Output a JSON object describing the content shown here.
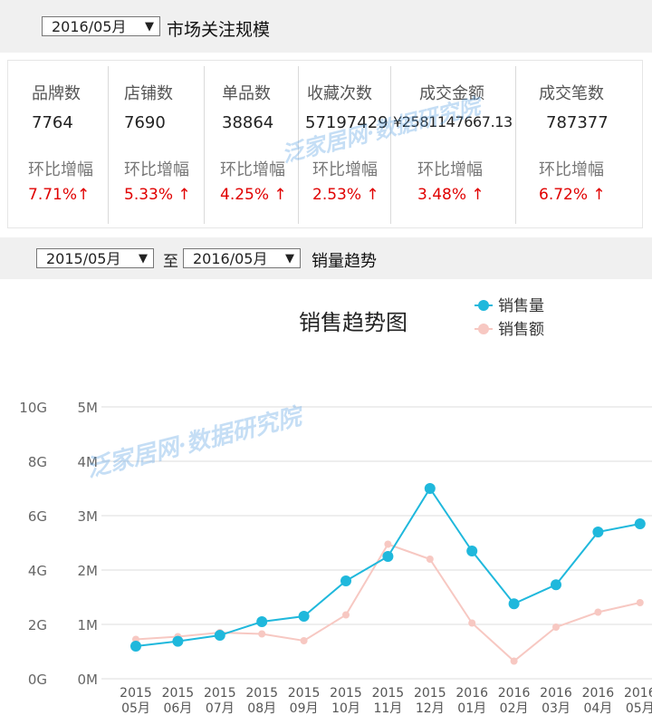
{
  "header": {
    "period": "2016/05月",
    "title": "市场关注规模"
  },
  "metrics": [
    {
      "label": "品牌数",
      "value": "7764",
      "change_label": "环比增幅",
      "change": "7.71%↑"
    },
    {
      "label": "店铺数",
      "value": "7690",
      "change_label": "环比增幅",
      "change": "5.33% ↑"
    },
    {
      "label": "单品数",
      "value": "38864",
      "change_label": "环比增幅",
      "change": "4.25% ↑"
    },
    {
      "label": "收藏次数",
      "value": "57197429",
      "change_label": "环比增幅",
      "change": "2.53% ↑"
    },
    {
      "label": "成交金额",
      "value": "¥2581147667.13",
      "change_label": "环比增幅",
      "change": "3.48% ↑"
    },
    {
      "label": "成交笔数",
      "value": "787377",
      "change_label": "环比增幅",
      "change": "6.72% ↑"
    }
  ],
  "trend_bar": {
    "from": "2015/05月",
    "to_label": "至",
    "to": "2016/05月",
    "title": "销量趋势"
  },
  "watermark": "泛家居网·数据研究院",
  "icons": {
    "dropdown": "caret-down-icon"
  },
  "colors": {
    "volume": "#1fb8dc",
    "amount": "#f7c8c2",
    "up": "#e00000",
    "grid": "#dddddd"
  },
  "chart_data": {
    "type": "line",
    "title": "销售趋势图",
    "legend_position": "top-right",
    "x_years": [
      "2015",
      "2015",
      "2015",
      "2015",
      "2015",
      "2015",
      "2015",
      "2015",
      "2016",
      "2016",
      "2016",
      "2016",
      "2016"
    ],
    "x_months": [
      "05月",
      "06月",
      "07月",
      "08月",
      "09月",
      "10月",
      "11月",
      "12月",
      "01月",
      "02月",
      "03月",
      "04月",
      "05月"
    ],
    "y_right_ticks": [
      "0M",
      "1M",
      "2M",
      "3M",
      "4M",
      "5M"
    ],
    "y_left_ticks": [
      "0G",
      "2G",
      "4G",
      "6G",
      "8G",
      "10G"
    ],
    "y_right_range": [
      0,
      5000000
    ],
    "y_left_range": [
      0,
      10000000000
    ],
    "grid": true,
    "series": [
      {
        "name": "销售量",
        "axis": "right",
        "values": [
          600000,
          690000,
          800000,
          1050000,
          1150000,
          1800000,
          2250000,
          3500000,
          2350000,
          1380000,
          1730000,
          2700000,
          2850000
        ]
      },
      {
        "name": "销售额",
        "axis": "left",
        "values": [
          1450000000,
          1550000000,
          1700000000,
          1650000000,
          1400000000,
          2350000000,
          4950000000,
          4400000000,
          2050000000,
          650000000,
          1900000000,
          2450000000,
          2800000000
        ]
      }
    ]
  }
}
